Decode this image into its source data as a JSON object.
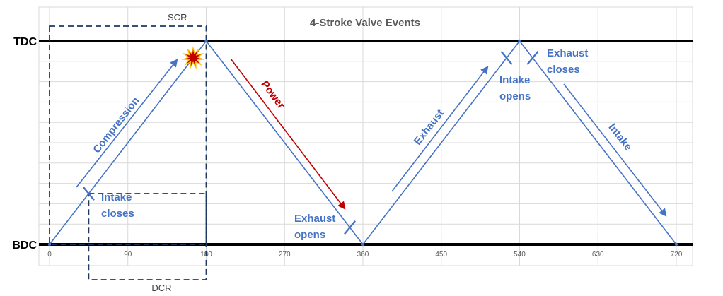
{
  "chart_data": {
    "type": "line",
    "title": "4-Stroke Valve Events",
    "x_ticks": [
      0,
      90,
      180,
      270,
      360,
      450,
      540,
      630,
      720
    ],
    "xlim": [
      0,
      720
    ],
    "y_levels": {
      "top": "TDC",
      "bottom": "BDC"
    },
    "grid": true,
    "series": [
      {
        "x": [
          0,
          180,
          360,
          540,
          720
        ],
        "y": [
          "BDC",
          "TDC",
          "BDC",
          "TDC",
          "BDC"
        ]
      }
    ],
    "valve_events": [
      {
        "label_lines": [
          "Intake",
          "closes"
        ],
        "x": 45
      },
      {
        "label_lines": [
          "Exhaust",
          "opens"
        ],
        "x": 345
      },
      {
        "label_lines": [
          "Intake",
          "opens"
        ],
        "x": 525
      },
      {
        "label_lines": [
          "Exhaust",
          "closes"
        ],
        "x": 555
      }
    ],
    "strokes": [
      {
        "label": "Compression",
        "color": "#4472C4"
      },
      {
        "label": "Power",
        "color": "#C00000"
      },
      {
        "label": "Exhaust",
        "color": "#4472C4"
      },
      {
        "label": "Intake",
        "color": "#4472C4"
      }
    ],
    "combustion_at": 165,
    "boxes": [
      {
        "label": "SCR",
        "x_range": [
          0,
          180
        ]
      },
      {
        "label": "DCR",
        "x_range": [
          45,
          180
        ]
      }
    ]
  },
  "colors": {
    "trace": "#4472C4",
    "power": "#C00000",
    "axis": "#000000",
    "grid": "#D9D9D9",
    "box": "#1F3864",
    "spark_outer": "#FFC000",
    "spark_inner": "#C00000"
  },
  "icons": {
    "combustion": "explosion-icon"
  }
}
